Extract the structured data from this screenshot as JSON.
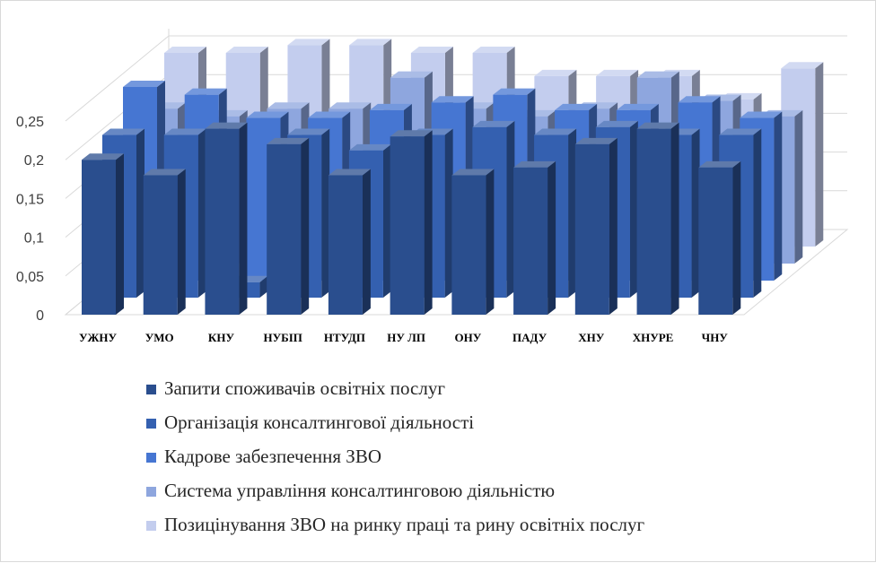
{
  "chart_data": {
    "type": "bar",
    "subtype": "3d-clustered-depth",
    "categories": [
      "УЖНУ",
      "УМО",
      "КНУ",
      "НУБІП",
      "НТУДП",
      "НУ ЛП",
      "ОНУ",
      "ПАДУ",
      "ХНУ",
      "ХНУРЕ",
      "ЧНУ"
    ],
    "y_tick_labels": [
      "0",
      "0,05",
      "0,1",
      "0,15",
      "0,2",
      "0,25"
    ],
    "ylim": [
      0,
      0.25
    ],
    "grid": true,
    "legend_position": "bottom",
    "series": [
      {
        "name": "Запити споживачів освітніх послуг",
        "color": "#2a4e8e",
        "values": [
          0.2,
          0.18,
          0.24,
          0.22,
          0.18,
          0.23,
          0.18,
          0.19,
          0.22,
          0.24,
          0.19
        ]
      },
      {
        "name": "Організація консалтингової діяльності",
        "color": "#3460b0",
        "values": [
          0.21,
          0.21,
          0.02,
          0.21,
          0.19,
          0.21,
          0.22,
          0.21,
          0.22,
          0.21,
          0.21
        ]
      },
      {
        "name": "Кадрове забезпечення ЗВО",
        "color": "#4676d2",
        "values": [
          0.25,
          0.24,
          0.21,
          0.21,
          0.22,
          0.23,
          0.24,
          0.22,
          0.22,
          0.23,
          0.21
        ]
      },
      {
        "name": "Система управління консалтинговою діяльністю",
        "color": "#8ea6de",
        "values": [
          0.2,
          0.19,
          0.2,
          0.2,
          0.24,
          0.2,
          0.19,
          0.2,
          0.24,
          0.21,
          0.19
        ]
      },
      {
        "name": "Позицінування ЗВО на ринку праці та рину освітніх послуг",
        "color": "#c3cdee",
        "values": [
          0.25,
          0.25,
          0.26,
          0.26,
          0.25,
          0.25,
          0.22,
          0.22,
          0.22,
          0.19,
          0.23
        ]
      }
    ]
  }
}
